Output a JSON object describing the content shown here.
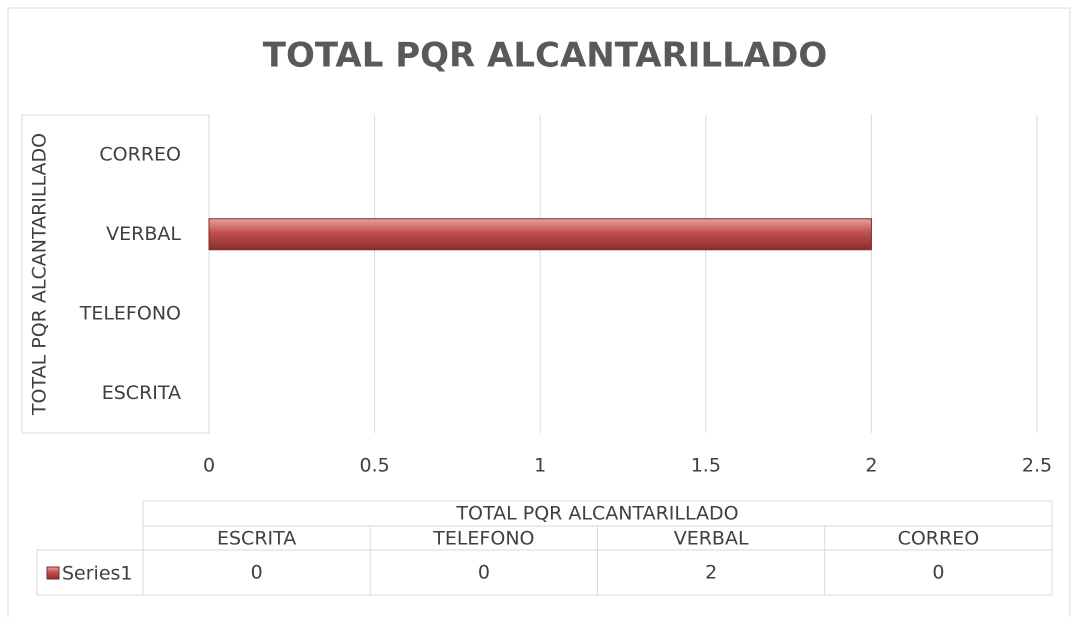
{
  "chart_data": {
    "type": "barh",
    "title": "TOTAL PQR ALCANTARILLADO",
    "y_label": "TOTAL PQR ALCANTARILLADO",
    "table_header": "TOTAL PQR ALCANTARILLADO",
    "categories": [
      "ESCRITA",
      "TELEFONO",
      "VERBAL",
      "CORREO"
    ],
    "series": [
      {
        "name": "Series1",
        "color": "#c0504d",
        "values": [
          0,
          0,
          2,
          0
        ]
      }
    ],
    "xlim": [
      0,
      2.5
    ],
    "xticks": [
      0,
      0.5,
      1,
      1.5,
      2,
      2.5
    ],
    "grid": true
  }
}
